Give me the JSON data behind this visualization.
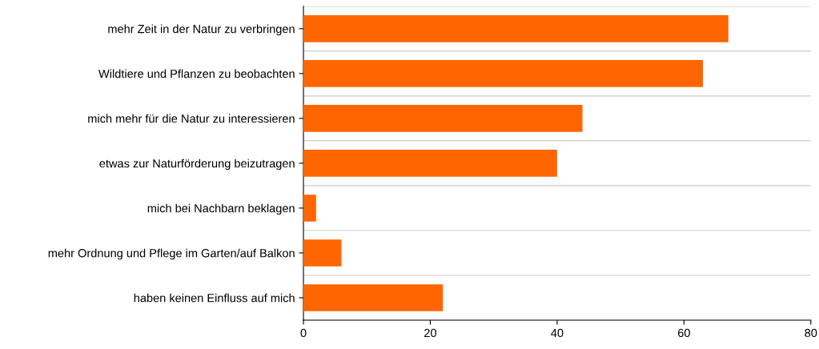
{
  "chart_data": {
    "type": "bar",
    "orientation": "horizontal",
    "categories": [
      "mehr Zeit in der Natur zu verbringen",
      "Wildtiere und Pflanzen zu beobachten",
      "mich mehr für die Natur zu interessieren",
      "etwas zur Naturförderung beizutragen",
      "mich bei Nachbarn beklagen",
      "mehr Ordnung und Pflege im Garten/auf Balkon",
      "haben keinen Einfluss auf mich"
    ],
    "values": [
      67,
      63,
      44,
      40,
      2,
      6,
      22
    ],
    "color": "#ff6600",
    "xlim": [
      0,
      80
    ],
    "xticks": [
      0,
      20,
      40,
      60,
      80
    ],
    "grid": "y"
  }
}
